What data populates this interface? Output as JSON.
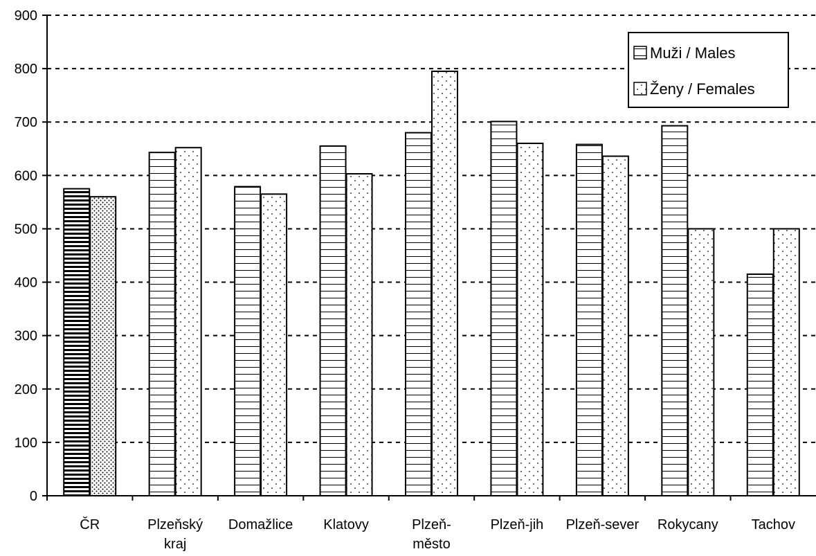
{
  "chart_data": {
    "type": "bar",
    "categories": [
      "ČR",
      "Plzeňský kraj",
      "Domažlice",
      "Klatovy",
      "Plzeň-město",
      "Plzeň-jih",
      "Plzeň-sever",
      "Rokycany",
      "Tachov"
    ],
    "category_lines": [
      [
        "ČR"
      ],
      [
        "Plzeňský",
        "kraj"
      ],
      [
        "Domažlice"
      ],
      [
        "Klatovy"
      ],
      [
        "Plzeň-",
        "město"
      ],
      [
        "Plzeň-jih"
      ],
      [
        "Plzeň-sever"
      ],
      [
        "Rokycany"
      ],
      [
        "Tachov"
      ]
    ],
    "series": [
      {
        "name": "Muži / Males",
        "values": [
          575,
          643,
          579,
          655,
          680,
          701,
          658,
          693,
          415
        ]
      },
      {
        "name": "Ženy / Females",
        "values": [
          560,
          652,
          565,
          603,
          795,
          660,
          636,
          500,
          500
        ]
      }
    ],
    "title": "",
    "xlabel": "",
    "ylabel": "",
    "ylim": [
      0,
      900
    ],
    "yticks": [
      0,
      100,
      200,
      300,
      400,
      500,
      600,
      700,
      800,
      900
    ],
    "grid": "horizontal dashed",
    "legend_position": "top-right",
    "colors": {
      "bar_fill": "#ffffff",
      "stroke": "#000000",
      "grid": "#000000"
    }
  }
}
